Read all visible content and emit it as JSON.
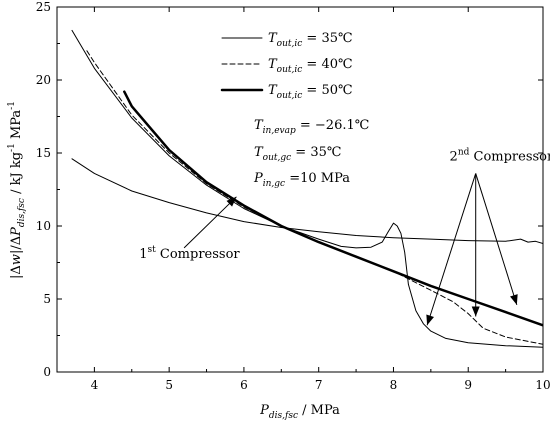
{
  "chart_data": {
    "type": "line",
    "xlim": [
      3.5,
      10
    ],
    "ylim": [
      0,
      25
    ],
    "x_ticks": [
      "4",
      "5",
      "6",
      "7",
      "8",
      "9",
      "10"
    ],
    "y_ticks": [
      "0",
      "5",
      "10",
      "15",
      "20",
      "25"
    ],
    "xlabel": {
      "main": "P",
      "sub": "dis,fsc",
      "rest": " / MPa"
    },
    "ylabel": {
      "p1": "|Δ",
      "w": "w",
      "p2": "|/Δ",
      "P": "P",
      "sub": "dis,fsc",
      "p3": " / kJ kg",
      "sup1": "-1",
      "p4": " MPa",
      "sup2": "-1"
    },
    "legend": [
      {
        "main": "T",
        "sub": "out,ic",
        "value": " = 35℃",
        "dash": "",
        "width": 1
      },
      {
        "main": "T",
        "sub": "out,ic",
        "value": " = 40℃",
        "dash": "5,3",
        "width": 1
      },
      {
        "main": "T",
        "sub": "out,ic",
        "value": " = 50℃",
        "dash": "",
        "width": 2.5
      }
    ],
    "parameters": [
      {
        "main": "T",
        "sub": "in,evap",
        "value": " = −26.1℃"
      },
      {
        "main": "T",
        "sub": "out,gc",
        "value": " = 35℃"
      },
      {
        "main": "P",
        "sub": "in,gc",
        "value": " =10 MPa"
      }
    ],
    "annotations": {
      "first_compressor": {
        "num": "1",
        "sup": "st",
        "rest": " Compressor",
        "label_x": 4.6,
        "label_y": 7.8,
        "tail": [
          5.2,
          8.5
        ],
        "head": [
          5.9,
          12.0
        ]
      },
      "second_compressor": {
        "num": "2",
        "sup": "nd",
        "rest": " Compressor",
        "label_x": 8.75,
        "label_y": 14.5,
        "anchor": [
          9.1,
          13.6
        ],
        "heads": [
          [
            8.45,
            3.2
          ],
          [
            9.1,
            3.8
          ],
          [
            9.65,
            4.6
          ]
        ]
      }
    },
    "series": [
      {
        "legend_index": 0,
        "part": "1st compressor",
        "x": [
          3.7,
          4.0,
          4.5,
          5.0,
          5.5,
          6.0,
          6.5,
          7.0,
          7.5,
          8.0,
          8.5,
          9.0,
          9.5,
          9.7,
          9.8,
          9.9,
          10.0
        ],
        "y": [
          14.6,
          13.6,
          12.4,
          11.6,
          10.9,
          10.3,
          9.9,
          9.6,
          9.35,
          9.2,
          9.1,
          9.0,
          8.95,
          9.1,
          8.9,
          8.95,
          8.8
        ]
      },
      {
        "legend_index": 0,
        "part": "2nd compressor",
        "x": [
          3.7,
          4.0,
          4.5,
          5.0,
          5.5,
          6.0,
          6.5,
          7.0,
          7.3,
          7.5,
          7.7,
          7.85,
          7.93,
          8.0,
          8.05,
          8.1,
          8.15,
          8.2,
          8.3,
          8.4,
          8.5,
          8.7,
          9.0,
          9.5,
          10.0
        ],
        "y": [
          23.4,
          20.8,
          17.4,
          14.8,
          12.8,
          11.2,
          10.0,
          9.1,
          8.6,
          8.5,
          8.55,
          8.9,
          9.6,
          10.2,
          10.0,
          9.5,
          8.2,
          6.0,
          4.2,
          3.3,
          2.8,
          2.3,
          2.0,
          1.8,
          1.7
        ]
      },
      {
        "legend_index": 1,
        "part": "2nd compressor",
        "x": [
          3.9,
          4.0,
          4.5,
          5.0,
          5.5,
          6.0,
          6.5,
          7.0,
          7.5,
          8.0,
          8.5,
          8.8,
          9.0,
          9.1,
          9.2,
          9.5,
          10.0
        ],
        "y": [
          22.0,
          21.2,
          17.6,
          15.0,
          12.9,
          11.3,
          10.0,
          8.9,
          7.9,
          6.9,
          5.6,
          4.8,
          4.0,
          3.5,
          3.0,
          2.4,
          1.9
        ]
      },
      {
        "legend_index": 2,
        "part": "2nd compressor",
        "x": [
          4.4,
          4.5,
          5.0,
          5.5,
          6.0,
          6.5,
          7.0,
          7.5,
          8.0,
          8.5,
          9.0,
          9.5,
          10.0
        ],
        "y": [
          19.2,
          18.2,
          15.2,
          13.0,
          11.4,
          10.0,
          8.9,
          7.9,
          6.9,
          5.9,
          5.0,
          4.1,
          3.2
        ]
      }
    ]
  }
}
